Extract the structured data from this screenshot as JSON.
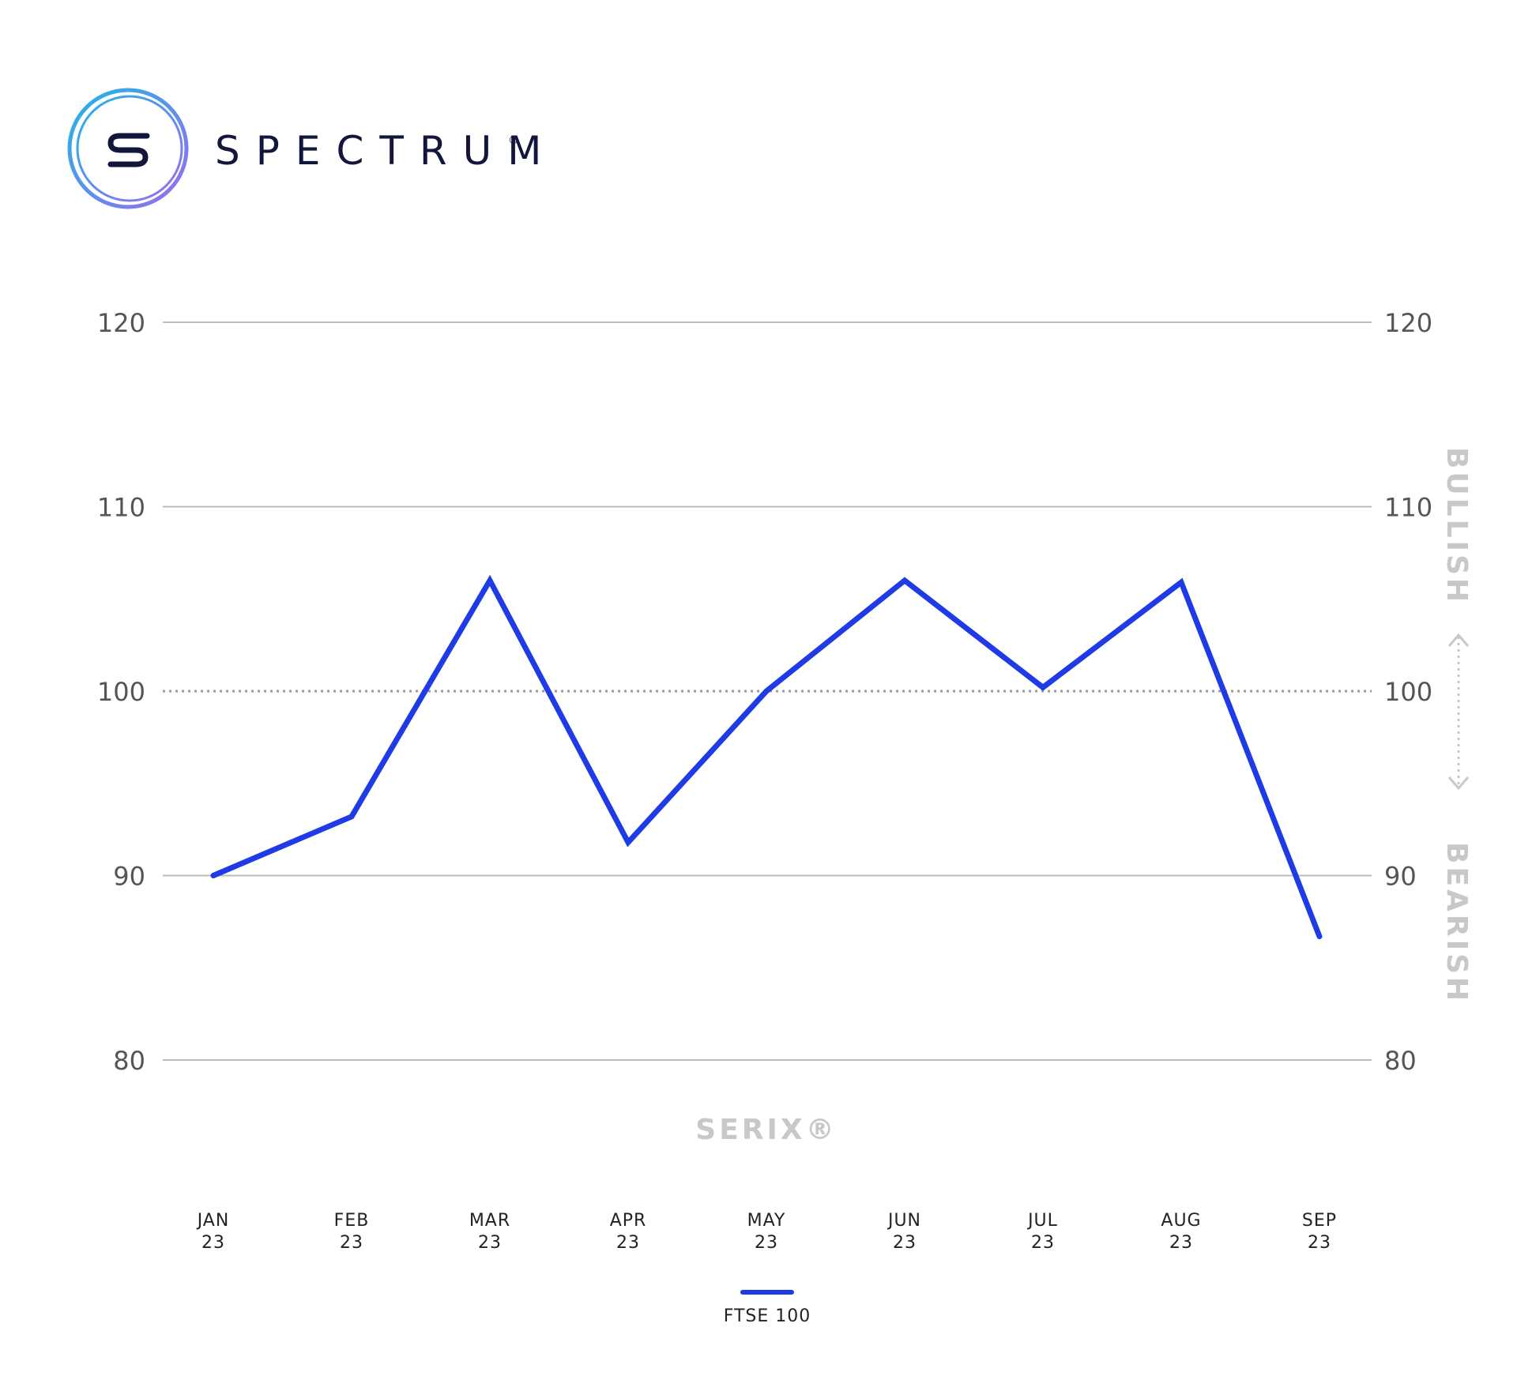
{
  "brand": {
    "name": "SPECTRUM",
    "registered_mark": "®"
  },
  "colors": {
    "series_line": "#1f3be6",
    "grid": "#bbbbbb",
    "baseline": "#9a9a9a",
    "watermark": "#c8c8c8",
    "logo_gradient": [
      "#1fb6e8",
      "#9a6cf0"
    ],
    "brand_text": "#12163a"
  },
  "chart_data": {
    "type": "line",
    "title": "",
    "watermark": "SERIX®",
    "xlabel": "",
    "ylabel": "",
    "categories": [
      {
        "month": "JAN",
        "year": "23"
      },
      {
        "month": "FEB",
        "year": "23"
      },
      {
        "month": "MAR",
        "year": "23"
      },
      {
        "month": "APR",
        "year": "23"
      },
      {
        "month": "MAY",
        "year": "23"
      },
      {
        "month": "JUN",
        "year": "23"
      },
      {
        "month": "JUL",
        "year": "23"
      },
      {
        "month": "AUG",
        "year": "23"
      },
      {
        "month": "SEP",
        "year": "23"
      }
    ],
    "series": [
      {
        "name": "FTSE 100",
        "values": [
          90,
          93.2,
          106,
          91.8,
          100,
          106,
          100.2,
          105.9,
          86.7
        ]
      }
    ],
    "ylim": [
      80,
      120
    ],
    "y_ticks_left": [
      "120",
      "110",
      "100",
      "90",
      "80"
    ],
    "y_ticks_right": [
      "120",
      "110",
      "100",
      "90",
      "80"
    ],
    "baseline_value": 100,
    "grid": true,
    "side_labels": {
      "upper": "BULLISH",
      "lower": "BEARISH"
    },
    "legend": {
      "position": "bottom-center",
      "entries": [
        "FTSE 100"
      ]
    }
  }
}
